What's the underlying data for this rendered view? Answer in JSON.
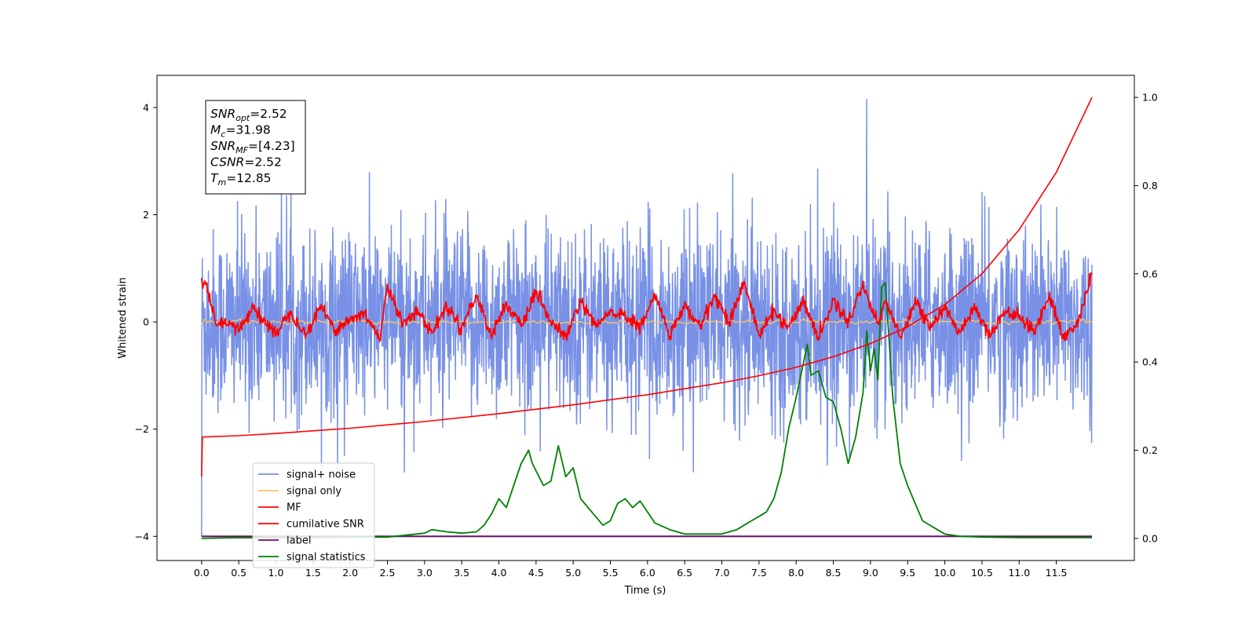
{
  "chart_data": {
    "type": "line",
    "xlabel": "Time (s)",
    "ylabel": "Whitened strain",
    "xlim": [
      -0.6,
      12.55
    ],
    "ylim": [
      -4.45,
      4.6
    ],
    "y2lim": [
      -0.05,
      1.05
    ],
    "x_ticks": [
      0.0,
      0.5,
      1.0,
      1.5,
      2.0,
      2.5,
      3.0,
      3.5,
      4.0,
      4.5,
      5.0,
      5.5,
      6.0,
      6.5,
      7.0,
      7.5,
      8.0,
      8.5,
      9.0,
      9.5,
      10.0,
      10.5,
      11.0,
      11.5
    ],
    "x_tick_labels": [
      "0.0",
      "0.5",
      "1.0",
      "1.5",
      "2.0",
      "2.5",
      "3.0",
      "3.5",
      "4.0",
      "4.5",
      "5.0",
      "5.5",
      "6.0",
      "6.5",
      "7.0",
      "7.5",
      "8.0",
      "8.5",
      "9.0",
      "9.5",
      "10.0",
      "10.5",
      "11.0",
      "11.5"
    ],
    "y_ticks": [
      -4,
      -2,
      0,
      2,
      4
    ],
    "y_tick_labels": [
      "−4",
      "−2",
      "0",
      "2",
      "4"
    ],
    "y2_ticks": [
      0.0,
      0.2,
      0.4,
      0.6,
      0.8,
      1.0
    ],
    "y2_tick_labels": [
      "0.0",
      "0.2",
      "0.4",
      "0.6",
      "0.8",
      "1.0"
    ],
    "legend_position": "lower-left",
    "grid": false,
    "annotation": [
      {
        "base": "SNR",
        "sub": "opt",
        "rest": "=2.52"
      },
      {
        "base": "M",
        "sub": "c",
        "rest": "=31.98"
      },
      {
        "base": "SNR",
        "sub": "MF",
        "rest": "=[4.23]"
      },
      {
        "base": "CSNR",
        "sub": "",
        "rest": "=2.52"
      },
      {
        "base": "T",
        "sub": "m",
        "rest": "=12.85"
      }
    ],
    "series": [
      {
        "name": "signal+ noise",
        "color": "#7891e6",
        "axis": "left",
        "style": "noise",
        "x_range": [
          0.0,
          11.98
        ],
        "mean": 0.0,
        "std": 0.85,
        "min": -4.0,
        "max": 4.15,
        "peak_x": 8.95
      },
      {
        "name": "signal only",
        "color": "#f5c26b",
        "axis": "left",
        "x_range": [
          0.0,
          11.98
        ],
        "y_approx": 0.0
      },
      {
        "name": "MF",
        "color": "#ff0000",
        "axis": "left",
        "style": "wiggle",
        "x_range": [
          0.0,
          11.98
        ],
        "x": [
          0.0,
          0.1,
          0.2,
          0.3,
          0.5,
          0.7,
          0.8,
          1.0,
          1.2,
          1.4,
          1.6,
          1.8,
          2.0,
          2.2,
          2.4,
          2.5,
          2.7,
          2.9,
          3.1,
          3.3,
          3.5,
          3.7,
          3.9,
          4.1,
          4.3,
          4.5,
          4.7,
          4.9,
          5.1,
          5.3,
          5.5,
          5.7,
          5.9,
          6.1,
          6.3,
          6.5,
          6.7,
          6.9,
          7.1,
          7.3,
          7.5,
          7.7,
          7.9,
          8.1,
          8.3,
          8.5,
          8.7,
          8.9,
          9.1,
          9.2,
          9.4,
          9.6,
          9.8,
          10.0,
          10.2,
          10.4,
          10.6,
          10.8,
          11.0,
          11.2,
          11.4,
          11.6,
          11.8,
          11.98
        ],
        "y": [
          0.85,
          0.5,
          -0.1,
          0.0,
          -0.15,
          0.3,
          0.05,
          -0.2,
          0.2,
          -0.25,
          0.3,
          -0.15,
          0.05,
          0.15,
          -0.3,
          0.65,
          0.0,
          0.2,
          -0.2,
          0.3,
          -0.1,
          0.5,
          -0.25,
          0.35,
          -0.1,
          0.55,
          0.0,
          -0.3,
          0.4,
          -0.1,
          0.2,
          0.1,
          -0.1,
          0.5,
          -0.25,
          0.3,
          -0.1,
          0.5,
          0.0,
          0.75,
          -0.25,
          0.2,
          -0.1,
          0.4,
          -0.3,
          0.4,
          0.0,
          0.7,
          -0.05,
          0.4,
          -0.3,
          0.4,
          -0.1,
          0.25,
          -0.2,
          0.3,
          -0.25,
          0.2,
          0.1,
          -0.2,
          0.5,
          -0.3,
          0.0,
          0.95
        ]
      },
      {
        "name": "cumilative SNR",
        "color": "#ff0000",
        "axis": "right",
        "x": [
          0.0,
          0.01,
          0.5,
          1.0,
          2.0,
          3.0,
          4.0,
          5.0,
          6.0,
          7.0,
          7.5,
          8.0,
          8.5,
          9.0,
          9.5,
          10.0,
          10.5,
          11.0,
          11.5,
          11.98
        ],
        "y": [
          0.14,
          0.23,
          0.233,
          0.238,
          0.25,
          0.265,
          0.283,
          0.303,
          0.326,
          0.353,
          0.369,
          0.388,
          0.412,
          0.442,
          0.48,
          0.53,
          0.6,
          0.7,
          0.83,
          1.0
        ]
      },
      {
        "name": "label",
        "color": "#6a0d6a",
        "axis": "left",
        "x_range": [
          0.0,
          11.98
        ],
        "y_approx": -4.0
      },
      {
        "name": "signal statistics",
        "color": "#008000",
        "axis": "right",
        "x": [
          0.0,
          0.5,
          1.0,
          1.5,
          2.0,
          2.5,
          3.0,
          3.1,
          3.3,
          3.5,
          3.7,
          3.8,
          3.9,
          4.0,
          4.1,
          4.2,
          4.3,
          4.4,
          4.45,
          4.6,
          4.7,
          4.8,
          4.9,
          5.0,
          5.1,
          5.2,
          5.3,
          5.4,
          5.5,
          5.6,
          5.7,
          5.8,
          5.9,
          6.0,
          6.1,
          6.3,
          6.5,
          6.8,
          7.0,
          7.2,
          7.4,
          7.5,
          7.6,
          7.7,
          7.8,
          7.9,
          8.0,
          8.1,
          8.15,
          8.2,
          8.3,
          8.4,
          8.5,
          8.6,
          8.7,
          8.8,
          8.9,
          8.95,
          9.0,
          9.05,
          9.1,
          9.15,
          9.2,
          9.25,
          9.3,
          9.4,
          9.5,
          9.6,
          9.7,
          9.8,
          9.9,
          10.0,
          10.2,
          10.5,
          11.0,
          11.5,
          11.98
        ],
        "y": [
          0.0,
          0.002,
          0.001,
          0.002,
          0.003,
          0.003,
          0.012,
          0.02,
          0.015,
          0.012,
          0.015,
          0.03,
          0.055,
          0.09,
          0.07,
          0.12,
          0.17,
          0.2,
          0.17,
          0.12,
          0.13,
          0.21,
          0.14,
          0.16,
          0.09,
          0.07,
          0.05,
          0.03,
          0.04,
          0.08,
          0.09,
          0.07,
          0.085,
          0.06,
          0.035,
          0.02,
          0.01,
          0.01,
          0.01,
          0.02,
          0.04,
          0.05,
          0.06,
          0.09,
          0.15,
          0.25,
          0.32,
          0.4,
          0.44,
          0.37,
          0.38,
          0.32,
          0.31,
          0.25,
          0.17,
          0.23,
          0.33,
          0.47,
          0.38,
          0.43,
          0.36,
          0.57,
          0.58,
          0.45,
          0.32,
          0.17,
          0.12,
          0.08,
          0.04,
          0.03,
          0.02,
          0.01,
          0.005,
          0.003,
          0.002,
          0.002,
          0.002
        ]
      }
    ]
  }
}
